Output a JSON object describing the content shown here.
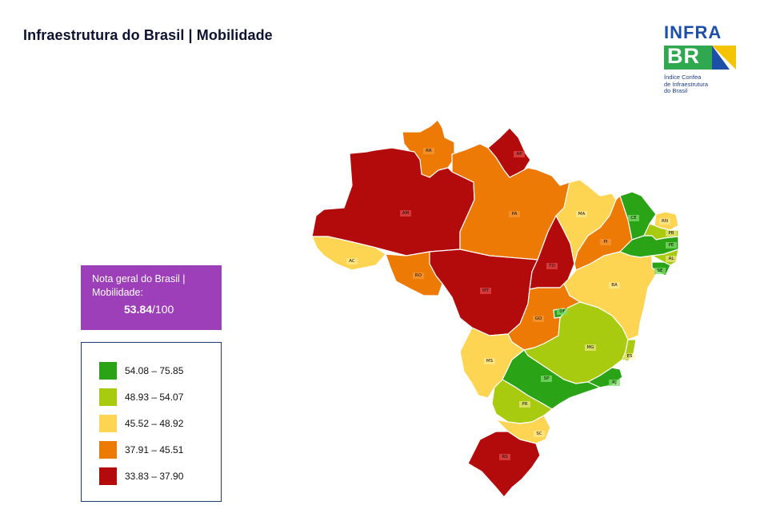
{
  "header": {
    "title": "Infraestrutura do Brasil | Mobilidade"
  },
  "logo": {
    "word": "INFRA",
    "br": "BR",
    "subtitle_lines": [
      "Índice Confea",
      "de Infraestrutura",
      "do Brasil"
    ]
  },
  "score": {
    "label_line1": "Nota geral do Brasil |",
    "label_line2": "Mobilidade:",
    "value": "53.84",
    "max": "/100"
  },
  "legend": {
    "items": [
      {
        "label": "54.08 – 75.85",
        "color": "#2aa416"
      },
      {
        "label": "48.93 – 54.07",
        "color": "#a9cb0f"
      },
      {
        "label": "45.52 – 48.92",
        "color": "#fed552"
      },
      {
        "label": "37.91 – 45.51",
        "color": "#ee7a06"
      },
      {
        "label": "33.83 – 37.90",
        "color": "#b30b0b"
      }
    ]
  },
  "states": [
    {
      "uf": "RR",
      "class": 3
    },
    {
      "uf": "AP",
      "class": 4
    },
    {
      "uf": "AM",
      "class": 4
    },
    {
      "uf": "PA",
      "class": 3
    },
    {
      "uf": "AC",
      "class": 2
    },
    {
      "uf": "RO",
      "class": 3
    },
    {
      "uf": "MT",
      "class": 4
    },
    {
      "uf": "TO",
      "class": 4
    },
    {
      "uf": "MA",
      "class": 2
    },
    {
      "uf": "PI",
      "class": 3
    },
    {
      "uf": "CE",
      "class": 0
    },
    {
      "uf": "RN",
      "class": 2
    },
    {
      "uf": "PB",
      "class": 1
    },
    {
      "uf": "PE",
      "class": 0
    },
    {
      "uf": "AL",
      "class": 1
    },
    {
      "uf": "SE",
      "class": 0
    },
    {
      "uf": "BA",
      "class": 2
    },
    {
      "uf": "GO",
      "class": 3
    },
    {
      "uf": "DF",
      "class": 0
    },
    {
      "uf": "MG",
      "class": 1
    },
    {
      "uf": "ES",
      "class": 1
    },
    {
      "uf": "RJ",
      "class": 0
    },
    {
      "uf": "SP",
      "class": 0
    },
    {
      "uf": "MS",
      "class": 2
    },
    {
      "uf": "PR",
      "class": 1
    },
    {
      "uf": "SC",
      "class": 2
    },
    {
      "uf": "RS",
      "class": 4
    }
  ]
}
